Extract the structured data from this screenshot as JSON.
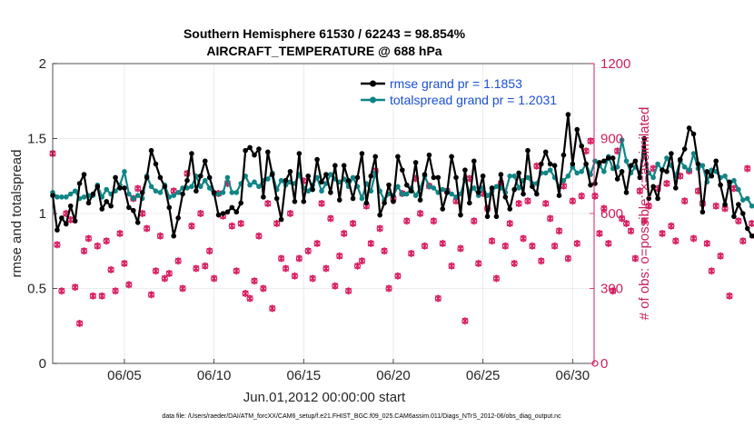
{
  "chart_data": {
    "type": "line",
    "title_line1": "Southern Hemisphere 61530 / 62243 = 98.854%",
    "title_line2": "AIRCRAFT_TEMPERATURE @ 688 hPa",
    "xlabel": "Jun.01,2012 00:00:00 start",
    "ylabel_left": "rmse and totalspread",
    "ylabel_right": "# of obs: o=possible; ×=assimilated",
    "footnote": "data file: /Users/raeder/DAI/ATM_forcXX/CAM6_setup/f.e21.FHIST_BGC.f09_025.CAM6assim.011/Diags_NTrS_2012-06/obs_diag_output.nc",
    "xlim": [
      1.0,
      31.2
    ],
    "ylim": [
      0,
      2
    ],
    "ylim_right": [
      0,
      1200
    ],
    "x_ticks": [
      5,
      10,
      15,
      20,
      25,
      30
    ],
    "x_tick_labels": [
      "06/05",
      "06/10",
      "06/15",
      "06/20",
      "06/25",
      "06/30"
    ],
    "y_ticks": [
      0,
      0.5,
      1,
      1.5,
      2
    ],
    "y_tick_labels": [
      "0",
      "0.5",
      "1",
      "1.5",
      "2"
    ],
    "y_right_ticks": [
      0,
      300,
      600,
      900,
      1200
    ],
    "y_right_tick_labels": [
      "0",
      "300",
      "600",
      "900",
      "1200"
    ],
    "legend": [
      {
        "label": "rmse grand pr = 1.1853",
        "color": "#000000"
      },
      {
        "label": "totalspread grand pr = 1.2031",
        "color": "#0f8585"
      }
    ],
    "colors": {
      "rmse": "#000000",
      "spread": "#0f8585",
      "obs": "#d81b60",
      "grid": "#e6e6e6",
      "axis": "#262626"
    },
    "start_day": 1.0,
    "step_days": 0.25,
    "rmse": [
      1.12,
      0.89,
      0.97,
      0.93,
      1.05,
      0.95,
      1.2,
      1.26,
      1.07,
      1.13,
      1.18,
      1.03,
      1.08,
      1.05,
      1.24,
      1.17,
      1.17,
      1.04,
      1.02,
      0.94,
      1.14,
      1.24,
      1.42,
      1.33,
      1.24,
      1.18,
      1.04,
      0.85,
      0.97,
      1.13,
      1.22,
      1.4,
      1.15,
      1.25,
      1.35,
      1.24,
      1.14,
      0.99,
      1.0,
      1.01,
      1.04,
      1.01,
      1.07,
      1.42,
      1.44,
      1.39,
      1.43,
      1.11,
      1.41,
      1.26,
      1.1,
      0.96,
      1.22,
      1.28,
      1.08,
      1.4,
      1.08,
      1.25,
      1.16,
      1.36,
      1.21,
      1.26,
      1.14,
      1.32,
      1.09,
      1.32,
      1.22,
      1.1,
      1.24,
      1.4,
      1.07,
      1.25,
      1.38,
      0.99,
      1.07,
      1.19,
      1.08,
      1.38,
      1.29,
      1.19,
      1.15,
      1.34,
      1.09,
      1.26,
      1.39,
      1.24,
      1.24,
      1.03,
      1.14,
      1.38,
      1.24,
      0.99,
      1.29,
      1.07,
      1.35,
      1.14,
      1.25,
      0.98,
      1.17,
      0.98,
      1.26,
      1.11,
      1.03,
      1.16,
      1.27,
      1.13,
      1.42,
      1.18,
      1.13,
      1.33,
      1.41,
      1.33,
      1.32,
      1.12,
      1.39,
      1.66,
      1.33,
      1.56,
      1.45,
      1.33,
      1.19,
      1.2,
      1.34,
      1.35,
      1.37,
      1.37,
      1.23,
      1.28,
      1.14,
      1.32,
      1.35,
      1.24,
      1.5,
      1.1,
      1.18,
      1.1,
      1.29,
      1.28,
      1.4,
      1.17,
      1.36,
      1.43,
      1.57,
      1.53,
      1.33,
      1.01,
      1.28,
      1.25,
      1.35,
      1.19,
      1.06,
      1.21,
      0.98,
      1.06,
      1.0,
      0.9,
      0.85
    ],
    "spread": [
      1.14,
      1.11,
      1.11,
      1.11,
      1.13,
      1.15,
      1.1,
      1.11,
      1.12,
      1.12,
      1.19,
      1.11,
      1.16,
      1.13,
      1.15,
      1.19,
      1.28,
      1.13,
      1.1,
      1.12,
      1.1,
      1.25,
      1.18,
      1.15,
      1.14,
      1.19,
      1.11,
      1.12,
      1.14,
      1.17,
      1.17,
      1.18,
      1.25,
      1.18,
      1.22,
      1.17,
      1.13,
      1.13,
      1.14,
      1.24,
      1.14,
      1.14,
      1.2,
      1.25,
      1.19,
      1.21,
      1.18,
      1.22,
      1.23,
      1.27,
      1.16,
      1.22,
      1.19,
      1.21,
      1.2,
      1.26,
      1.17,
      1.15,
      1.19,
      1.24,
      1.15,
      1.2,
      1.26,
      1.23,
      1.21,
      1.23,
      1.18,
      1.24,
      1.18,
      1.1,
      1.2,
      1.15,
      1.27,
      1.15,
      1.09,
      1.13,
      1.12,
      1.18,
      1.13,
      1.13,
      1.17,
      1.12,
      1.17,
      1.25,
      1.18,
      1.17,
      1.14,
      1.16,
      1.15,
      1.13,
      1.11,
      1.13,
      1.23,
      1.14,
      1.17,
      1.12,
      1.17,
      1.12,
      1.15,
      1.18,
      1.17,
      1.14,
      1.25,
      1.25,
      1.17,
      1.22,
      1.24,
      1.2,
      1.2,
      1.27,
      1.27,
      1.29,
      1.24,
      1.18,
      1.22,
      1.25,
      1.31,
      1.27,
      1.28,
      1.33,
      1.26,
      1.35,
      1.32,
      1.28,
      1.38,
      1.3,
      1.31,
      1.49,
      1.35,
      1.27,
      1.31,
      1.27,
      1.4,
      1.27,
      1.24,
      1.33,
      1.29,
      1.37,
      1.32,
      1.25,
      1.35,
      1.31,
      1.29,
      1.4,
      1.3,
      1.32,
      1.21,
      1.29,
      1.28,
      1.24,
      1.25,
      1.19,
      1.22,
      1.16,
      1.09,
      1.1,
      1.05
    ],
    "obs_count": [
      840,
      475,
      290,
      600,
      575,
      305,
      160,
      450,
      500,
      270,
      470,
      270,
      490,
      375,
      290,
      520,
      400,
      315,
      660,
      700,
      600,
      540,
      275,
      370,
      510,
      340,
      360,
      690,
      410,
      300,
      760,
      550,
      380,
      600,
      390,
      450,
      340,
      680,
      590,
      720,
      550,
      370,
      560,
      280,
      260,
      330,
      510,
      300,
      640,
      220,
      560,
      420,
      380,
      600,
      350,
      420,
      730,
      450,
      340,
      480,
      640,
      380,
      580,
      310,
      430,
      520,
      290,
      560,
      390,
      410,
      630,
      480,
      770,
      540,
      450,
      300,
      660,
      350,
      680,
      570,
      440,
      740,
      600,
      470,
      710,
      570,
      260,
      480,
      690,
      390,
      650,
      460,
      170,
      740,
      570,
      400,
      680,
      620,
      490,
      340,
      720,
      470,
      560,
      400,
      640,
      500,
      650,
      470,
      790,
      410,
      640,
      580,
      470,
      530,
      710,
      420,
      650,
      480,
      670,
      850,
      890,
      670,
      520,
      620,
      480,
      290,
      850,
      580,
      560,
      530,
      420,
      690,
      570,
      630,
      780,
      700,
      520,
      720,
      550,
      490,
      750,
      650,
      770,
      500,
      690,
      640,
      480,
      370,
      630,
      430,
      620,
      270,
      700,
      570,
      490,
      780,
      560,
      510,
      550,
      290,
      610,
      540,
      380,
      610,
      470,
      300,
      560,
      200,
      370
    ]
  }
}
